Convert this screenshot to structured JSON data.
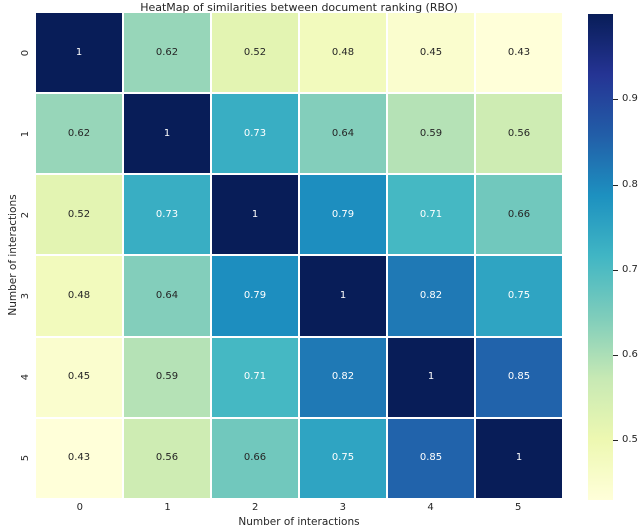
{
  "chart_data": {
    "type": "heatmap",
    "title": "HeatMap of similarities between document ranking (RBO)",
    "xlabel": "Number of interactions",
    "ylabel": "Number of interactions",
    "x_categories": [
      "0",
      "1",
      "2",
      "3",
      "4",
      "5"
    ],
    "y_categories": [
      "0",
      "1",
      "2",
      "3",
      "4",
      "5"
    ],
    "matrix": [
      [
        1,
        0.62,
        0.52,
        0.48,
        0.45,
        0.43
      ],
      [
        0.62,
        1,
        0.73,
        0.64,
        0.59,
        0.56
      ],
      [
        0.52,
        0.73,
        1,
        0.79,
        0.71,
        0.66
      ],
      [
        0.48,
        0.64,
        0.79,
        1,
        0.82,
        0.75
      ],
      [
        0.45,
        0.59,
        0.71,
        0.82,
        1,
        0.85
      ],
      [
        0.43,
        0.56,
        0.66,
        0.75,
        0.85,
        1
      ]
    ],
    "vmin": 0.43,
    "vmax": 1.0,
    "colormap": {
      "name": "YlGnBu",
      "anchors": [
        "#ffffd9",
        "#edf8b1",
        "#c7e9b4",
        "#7fcdbb",
        "#41b6c4",
        "#1d91c0",
        "#225ea8",
        "#253494",
        "#081d58"
      ]
    },
    "colorbar": {
      "tick_labels": [
        "0.9",
        "0.8",
        "0.7",
        "0.6",
        "0.5"
      ],
      "tick_values": [
        0.9,
        0.8,
        0.7,
        0.6,
        0.5
      ]
    },
    "annotation_colors": {
      "light": "#ffffff",
      "dark": "#262626"
    },
    "grid_line_color": "#ffffff",
    "legend_position": "right"
  }
}
